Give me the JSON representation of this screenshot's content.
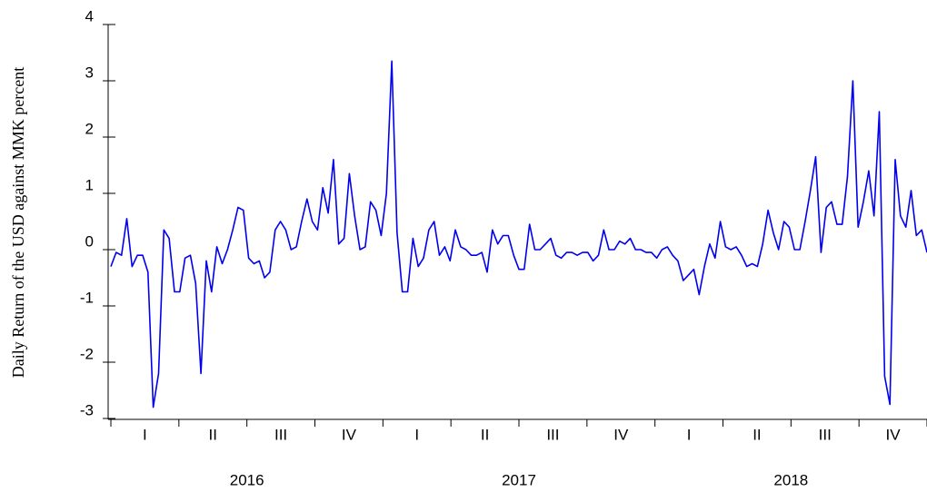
{
  "chart_data": {
    "type": "line",
    "y_axis_label": "Daily Return of the USD against MMK percent",
    "ylim": [
      -3,
      4
    ],
    "yticks": [
      -3,
      -2,
      -1,
      0,
      1,
      2,
      3,
      4
    ],
    "quarters": [
      "I",
      "II",
      "III",
      "IV",
      "I",
      "II",
      "III",
      "IV",
      "I",
      "II",
      "III",
      "IV"
    ],
    "years": [
      "2016",
      "2017",
      "2018"
    ],
    "series": [
      {
        "color": "#0000ee",
        "values": [
          -0.3,
          -0.05,
          -0.1,
          0.55,
          -0.3,
          -0.1,
          -0.1,
          -0.4,
          -2.8,
          -2.2,
          0.35,
          0.2,
          -0.75,
          -0.75,
          -0.15,
          -0.1,
          -0.6,
          -2.2,
          -0.2,
          -0.75,
          0.05,
          -0.25,
          0.0,
          0.35,
          0.75,
          0.7,
          -0.15,
          -0.25,
          -0.2,
          -0.5,
          -0.4,
          0.35,
          0.5,
          0.35,
          0.0,
          0.05,
          0.5,
          0.9,
          0.5,
          0.35,
          1.1,
          0.65,
          1.6,
          0.1,
          0.2,
          1.35,
          0.6,
          0.0,
          0.05,
          0.85,
          0.7,
          0.25,
          1.0,
          3.35,
          0.3,
          -0.75,
          -0.75,
          0.2,
          -0.3,
          -0.15,
          0.35,
          0.5,
          -0.1,
          0.05,
          -0.2,
          0.35,
          0.05,
          0.0,
          -0.1,
          -0.1,
          -0.05,
          -0.4,
          0.35,
          0.1,
          0.25,
          0.25,
          -0.1,
          -0.35,
          -0.35,
          0.45,
          0.0,
          0.0,
          0.1,
          0.2,
          -0.1,
          -0.15,
          -0.05,
          -0.05,
          -0.1,
          -0.05,
          -0.05,
          -0.2,
          -0.1,
          0.35,
          0.0,
          0.0,
          0.15,
          0.1,
          0.2,
          0.0,
          0.0,
          -0.05,
          -0.05,
          -0.15,
          0.0,
          0.05,
          -0.1,
          -0.2,
          -0.55,
          -0.45,
          -0.35,
          -0.8,
          -0.3,
          0.1,
          -0.15,
          0.5,
          0.05,
          0.0,
          0.05,
          -0.1,
          -0.3,
          -0.25,
          -0.3,
          0.1,
          0.7,
          0.3,
          0.0,
          0.5,
          0.4,
          0.0,
          0.0,
          0.5,
          1.05,
          1.65,
          -0.05,
          0.75,
          0.85,
          0.45,
          0.45,
          1.3,
          3.0,
          0.4,
          0.85,
          1.4,
          0.6,
          2.45,
          -2.25,
          -2.75,
          1.6,
          0.6,
          0.4,
          1.05,
          0.25,
          0.35,
          -0.05
        ]
      }
    ]
  }
}
